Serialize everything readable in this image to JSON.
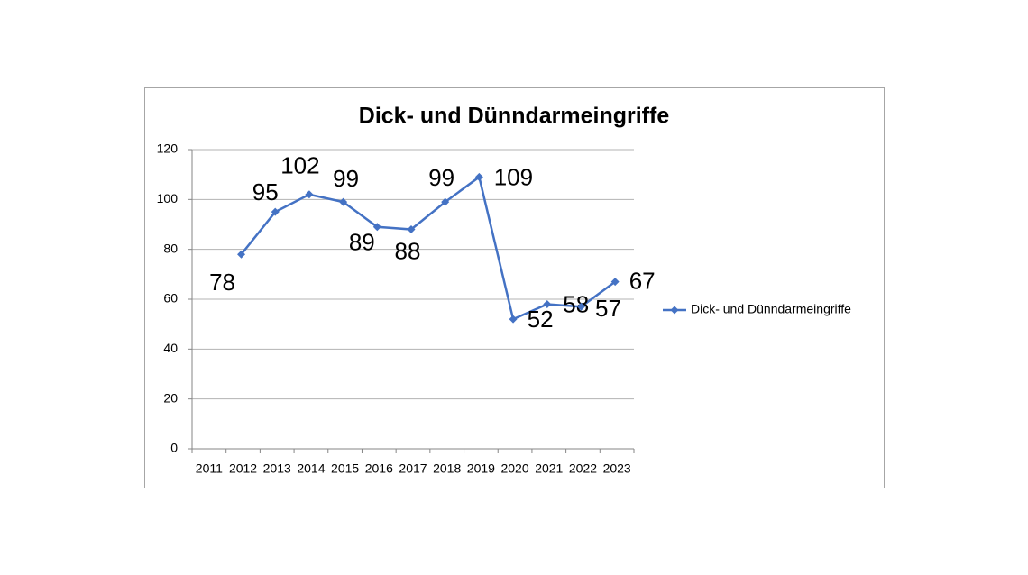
{
  "chart_data": {
    "type": "line",
    "title": "Dick- und Dünndarmeingriffe",
    "categories": [
      "2011",
      "2012",
      "2013",
      "2014",
      "2015",
      "2016",
      "2017",
      "2018",
      "2019",
      "2020",
      "2021",
      "2022",
      "2023"
    ],
    "series": [
      {
        "name": "Dick- und Dünndarmeingriffe",
        "color": "#4472c4",
        "values": [
          null,
          78,
          95,
          102,
          99,
          89,
          88,
          99,
          109,
          52,
          58,
          57,
          67
        ]
      }
    ],
    "ylim": [
      0,
      120
    ],
    "yticks": [
      0,
      20,
      40,
      60,
      80,
      100,
      120
    ],
    "grid": true,
    "legend": "right"
  }
}
